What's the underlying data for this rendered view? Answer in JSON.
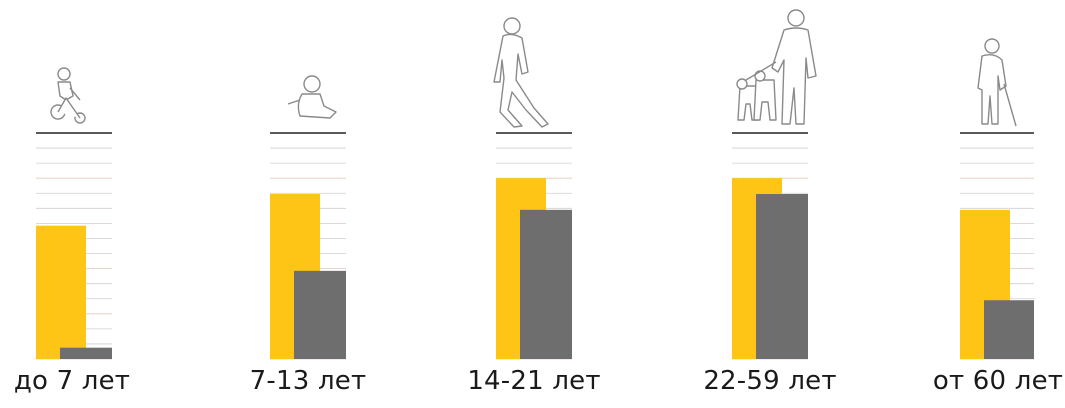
{
  "chart_data": {
    "type": "bar",
    "title": "",
    "xlabel": "",
    "ylabel": "",
    "grid": true,
    "legend": "none",
    "categories": [
      "до 7 лет",
      "7-13 лет",
      "14-21 лет",
      "22-59 лет",
      "от 60 лет"
    ],
    "ylim": [
      0,
      100
    ],
    "series": [
      {
        "values": [
          59,
          73,
          80,
          80,
          66
        ]
      },
      {
        "values": [
          5,
          39,
          66,
          73,
          26
        ]
      }
    ],
    "icons": [
      "child-on-tricycle-icon",
      "child-sitting-icon",
      "teenager-walking-icon",
      "adult-with-dogs-icon",
      "elderly-with-cane-icon"
    ]
  },
  "colors": {
    "series_a": "#FFC516",
    "series_b": "#6E6E6E",
    "baseline": "#222222",
    "grid": "#cfcfcf",
    "grid_alt": "#e2c9c0",
    "figure_stroke": "#8a8a8a"
  }
}
